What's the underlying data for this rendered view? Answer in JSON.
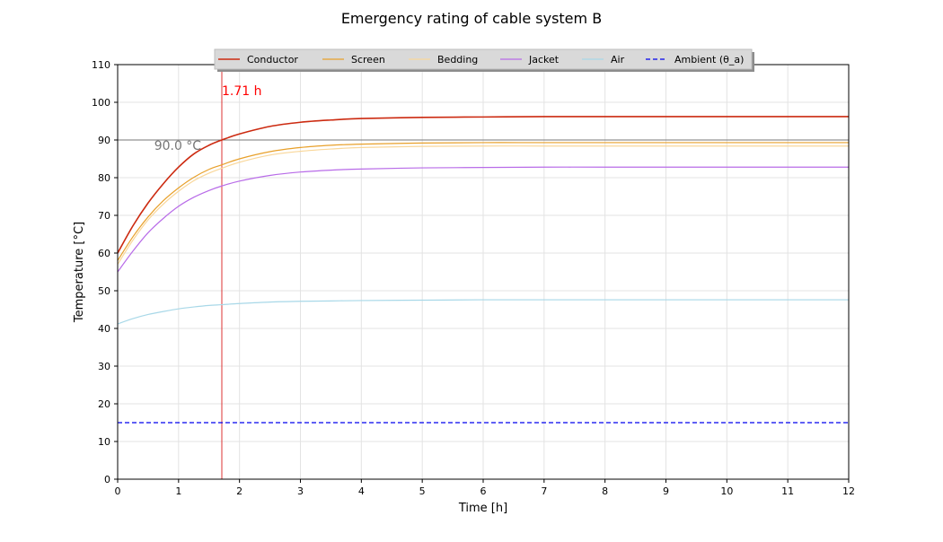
{
  "chart_data": {
    "type": "line",
    "title": "Emergency rating of cable system B",
    "xlabel": "Time [h]",
    "ylabel": "Temperature [°C]",
    "xlim": [
      0,
      12
    ],
    "ylim": [
      0,
      110
    ],
    "xticks": [
      0,
      1,
      2,
      3,
      4,
      5,
      6,
      7,
      8,
      9,
      10,
      11,
      12
    ],
    "yticks": [
      0,
      10,
      20,
      30,
      40,
      50,
      60,
      70,
      80,
      90,
      100,
      110
    ],
    "grid": true,
    "legend_position": "top-center",
    "series": [
      {
        "name": "Conductor",
        "color": "#cc2a10",
        "width": 1.6,
        "x": [
          0,
          0.25,
          0.5,
          0.75,
          1,
          1.25,
          1.5,
          1.71,
          2,
          2.5,
          3,
          3.5,
          4,
          5,
          6,
          7,
          8,
          9,
          10,
          11,
          12
        ],
        "y": [
          60.0,
          67.2,
          73.3,
          78.4,
          82.8,
          86.3,
          88.6,
          90.0,
          91.6,
          93.6,
          94.7,
          95.3,
          95.7,
          96.0,
          96.1,
          96.2,
          96.2,
          96.2,
          96.2,
          96.2,
          96.2
        ]
      },
      {
        "name": "Screen",
        "color": "#e8a02a",
        "width": 1.2,
        "x": [
          0,
          0.25,
          0.5,
          0.75,
          1,
          1.25,
          1.5,
          1.71,
          2,
          2.5,
          3,
          3.5,
          4,
          5,
          6,
          7,
          8,
          9,
          10,
          11,
          12
        ],
        "y": [
          58.0,
          64.3,
          69.6,
          73.9,
          77.3,
          80.1,
          82.2,
          83.4,
          85.0,
          86.9,
          88.0,
          88.6,
          88.9,
          89.2,
          89.3,
          89.3,
          89.3,
          89.3,
          89.3,
          89.3,
          89.3
        ]
      },
      {
        "name": "Bedding",
        "color": "#f9d79a",
        "width": 1.2,
        "x": [
          0,
          0.25,
          0.5,
          0.75,
          1,
          1.25,
          1.5,
          1.71,
          2,
          2.5,
          3,
          3.5,
          4,
          5,
          6,
          7,
          8,
          9,
          10,
          11,
          12
        ],
        "y": [
          57.0,
          63.4,
          68.8,
          73.0,
          76.4,
          79.2,
          81.2,
          82.5,
          84.1,
          86.0,
          87.0,
          87.6,
          88.0,
          88.3,
          88.4,
          88.4,
          88.4,
          88.4,
          88.4,
          88.4,
          88.4
        ]
      },
      {
        "name": "Jacket",
        "color": "#b86be8",
        "width": 1.2,
        "x": [
          0,
          0.25,
          0.5,
          0.75,
          1,
          1.25,
          1.5,
          1.71,
          2,
          2.5,
          3,
          3.5,
          4,
          5,
          6,
          7,
          8,
          9,
          10,
          11,
          12
        ],
        "y": [
          55.0,
          60.5,
          65.4,
          69.2,
          72.4,
          74.8,
          76.6,
          77.8,
          79.1,
          80.6,
          81.5,
          82.0,
          82.3,
          82.6,
          82.7,
          82.8,
          82.8,
          82.8,
          82.8,
          82.8,
          82.8
        ]
      },
      {
        "name": "Air",
        "color": "#a8d8e8",
        "width": 1.2,
        "x": [
          0,
          0.25,
          0.5,
          0.75,
          1,
          1.25,
          1.5,
          1.71,
          2,
          2.5,
          3,
          3.5,
          4,
          5,
          6,
          7,
          8,
          9,
          10,
          11,
          12
        ],
        "y": [
          41.2,
          42.6,
          43.7,
          44.5,
          45.2,
          45.7,
          46.1,
          46.3,
          46.6,
          47.0,
          47.2,
          47.3,
          47.4,
          47.5,
          47.6,
          47.6,
          47.6,
          47.6,
          47.6,
          47.6,
          47.6
        ]
      },
      {
        "name": "Ambient (θ_a)",
        "color": "#0000ee",
        "width": 1.2,
        "dash": "5,3",
        "x": [
          0,
          12
        ],
        "y": [
          15,
          15
        ]
      }
    ],
    "hline": {
      "y": 90.0,
      "label": "90.0 °C",
      "label_x": 0.6,
      "color": "#777777"
    },
    "vline": {
      "x": 1.71,
      "label": "1.71 h",
      "color": "#dd3333",
      "label_color": "#ff0000"
    }
  }
}
